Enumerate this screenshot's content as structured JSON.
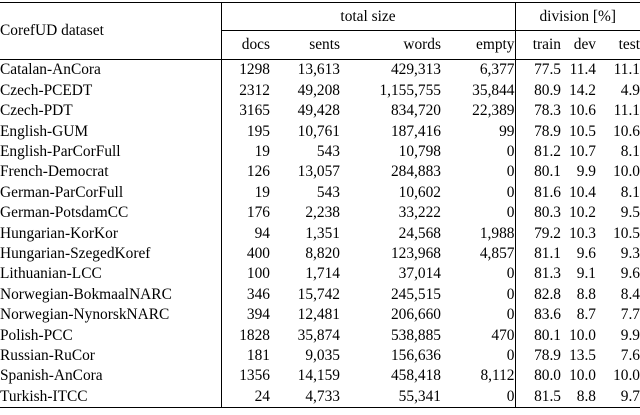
{
  "header": {
    "dataset": "CorefUD dataset",
    "total_size": "total size",
    "division": "division [%]",
    "cols": [
      "docs",
      "sents",
      "words",
      "empty",
      "train",
      "dev",
      "test"
    ]
  },
  "rows": [
    [
      "Catalan-AnCora",
      "1298",
      "13,613",
      "429,313",
      "6,377",
      "77.5",
      "11.4",
      "11.1"
    ],
    [
      "Czech-PCEDT",
      "2312",
      "49,208",
      "1,155,755",
      "35,844",
      "80.9",
      "14.2",
      "4.9"
    ],
    [
      "Czech-PDT",
      "3165",
      "49,428",
      "834,720",
      "22,389",
      "78.3",
      "10.6",
      "11.1"
    ],
    [
      "English-GUM",
      "195",
      "10,761",
      "187,416",
      "99",
      "78.9",
      "10.5",
      "10.6"
    ],
    [
      "English-ParCorFull",
      "19",
      "543",
      "10,798",
      "0",
      "81.2",
      "10.7",
      "8.1"
    ],
    [
      "French-Democrat",
      "126",
      "13,057",
      "284,883",
      "0",
      "80.1",
      "9.9",
      "10.0"
    ],
    [
      "German-ParCorFull",
      "19",
      "543",
      "10,602",
      "0",
      "81.6",
      "10.4",
      "8.1"
    ],
    [
      "German-PotsdamCC",
      "176",
      "2,238",
      "33,222",
      "0",
      "80.3",
      "10.2",
      "9.5"
    ],
    [
      "Hungarian-KorKor",
      "94",
      "1,351",
      "24,568",
      "1,988",
      "79.2",
      "10.3",
      "10.5"
    ],
    [
      "Hungarian-SzegedKoref",
      "400",
      "8,820",
      "123,968",
      "4,857",
      "81.1",
      "9.6",
      "9.3"
    ],
    [
      "Lithuanian-LCC",
      "100",
      "1,714",
      "37,014",
      "0",
      "81.3",
      "9.1",
      "9.6"
    ],
    [
      "Norwegian-BokmaalNARC",
      "346",
      "15,742",
      "245,515",
      "0",
      "82.8",
      "8.8",
      "8.4"
    ],
    [
      "Norwegian-NynorskNARC",
      "394",
      "12,481",
      "206,660",
      "0",
      "83.6",
      "8.7",
      "7.7"
    ],
    [
      "Polish-PCC",
      "1828",
      "35,874",
      "538,885",
      "470",
      "80.1",
      "10.0",
      "9.9"
    ],
    [
      "Russian-RuCor",
      "181",
      "9,035",
      "156,636",
      "0",
      "78.9",
      "13.5",
      "7.6"
    ],
    [
      "Spanish-AnCora",
      "1356",
      "14,159",
      "458,418",
      "8,112",
      "80.0",
      "10.0",
      "10.0"
    ],
    [
      "Turkish-ITCC",
      "24",
      "4,733",
      "55,341",
      "0",
      "81.5",
      "8.8",
      "9.7"
    ]
  ]
}
